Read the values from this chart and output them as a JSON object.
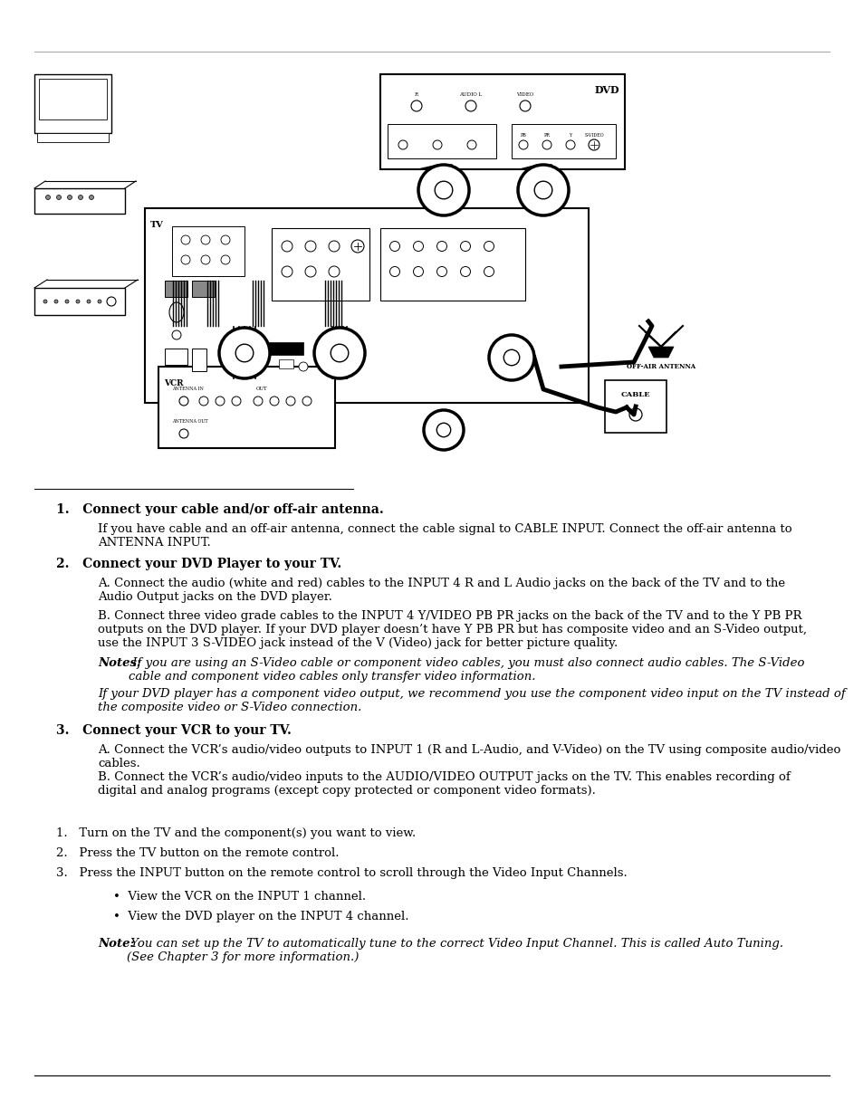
{
  "bg_color": "#ffffff",
  "text_color": "#000000",
  "gray_line_color": "#999999",
  "dark_line_color": "#111111",
  "section1_heading": "1.   Connect your cable and/or off-air antenna.",
  "section1_body": "If you have cable and an off-air antenna, connect the cable signal to CABLE INPUT. Connect the off-air antenna to\nANTENNA INPUT.",
  "section2_heading": "2.   Connect your DVD Player to your TV.",
  "section2_body_A": "A. Connect the audio (white and red) cables to the INPUT 4 R and L Audio jacks on the back of the TV and to the\nAudio Output jacks on the DVD player.",
  "section2_body_B": "B. Connect three video grade cables to the INPUT 4 Y/VIDEO PB PR jacks on the back of the TV and to the Y PB PR\noutputs on the DVD player. If your DVD player doesn’t have Y PB PR but has composite video and an S-Video output,\nuse the INPUT 3 S-VIDEO jack instead of the V (Video) jack for better picture quality.",
  "section2_notes1_bold": "Notes:",
  "section2_notes1_italic": " If you are using an S-Video cable or component video cables, you must also connect audio cables. The S-Video\ncable and component video cables only transfer video information.",
  "section2_notes2_italic": "If your DVD player has a component video output, we recommend you use the component video input on the TV instead of\nthe composite video or S-Video connection.",
  "section3_heading": "3.   Connect your VCR to your TV.",
  "section3_body_A": "A. Connect the VCR’s audio/video outputs to INPUT 1 (R and L-Audio, and V-Video) on the TV using composite audio/video\ncables.",
  "section3_body_B": "B. Connect the VCR’s audio/video inputs to the AUDIO/VIDEO OUTPUT jacks on the TV. This enables recording of\ndigital and analog programs (except copy protected or component video formats).",
  "viewing_heading_1": "1.   Turn on the TV and the component(s) you want to view.",
  "viewing_heading_2": "2.   Press the TV button on the remote control.",
  "viewing_heading_3": "3.   Press the INPUT button on the remote control to scroll through the Video Input Channels.",
  "bullet1": "•  View the VCR on the INPUT 1 channel.",
  "bullet2": "•  View the DVD player on the INPUT 4 channel.",
  "note_bold": "Note:",
  "note_italic": " You can set up the TV to automatically tune to the correct Video Input Channel. This is called Auto Tuning.\n(See Chapter 3 for more information.)",
  "font_size_body": 9.5,
  "font_size_heading": 10.0,
  "font_family": "DejaVu Serif"
}
